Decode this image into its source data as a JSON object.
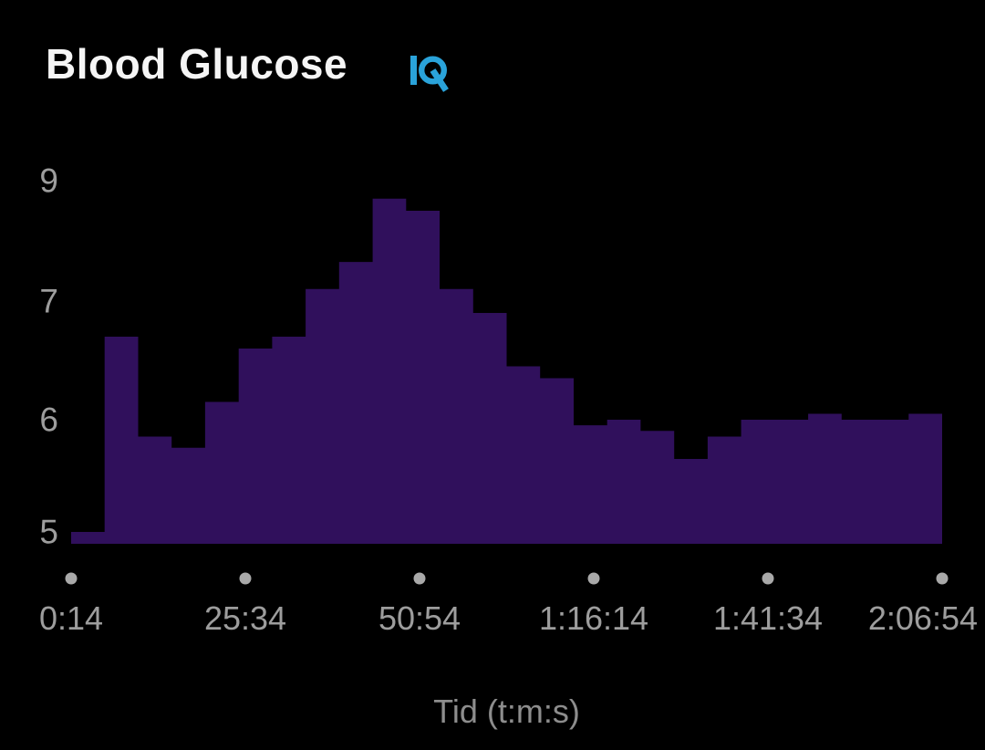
{
  "header": {
    "title": "Blood Glucose",
    "logo_name": "Connect IQ"
  },
  "colors": {
    "background": "#000000",
    "area_fill": "#30105c",
    "axis_text": "#9d9d9d",
    "axis_title_text": "#8d8d8d",
    "axis_dot": "#a9a9a9",
    "title_text": "#f5f5f5",
    "logo_blue": "#2aa3da"
  },
  "chart_data": {
    "type": "area",
    "title": "Blood Glucose",
    "xlabel": "Tid (t:m:s)",
    "ylabel": "",
    "grid": false,
    "legend": false,
    "x_tick_labels": [
      "0:14",
      "25:34",
      "50:54",
      "1:16:14",
      "1:41:34",
      "2:06:54"
    ],
    "y_tick_labels": [
      "5",
      "6",
      "7",
      "9"
    ],
    "y_tick_values": [
      5,
      6,
      7,
      9
    ],
    "ylim": [
      4.9,
      9.3
    ],
    "series_name": "blood-glucose",
    "values": [
      5.0,
      6.7,
      5.85,
      5.75,
      6.15,
      6.6,
      6.7,
      7.2,
      7.65,
      8.7,
      8.5,
      7.2,
      6.9,
      6.45,
      6.35,
      5.95,
      6.0,
      5.9,
      5.65,
      5.85,
      6.0,
      6.0,
      6.05,
      6.0,
      6.0,
      6.05
    ]
  }
}
